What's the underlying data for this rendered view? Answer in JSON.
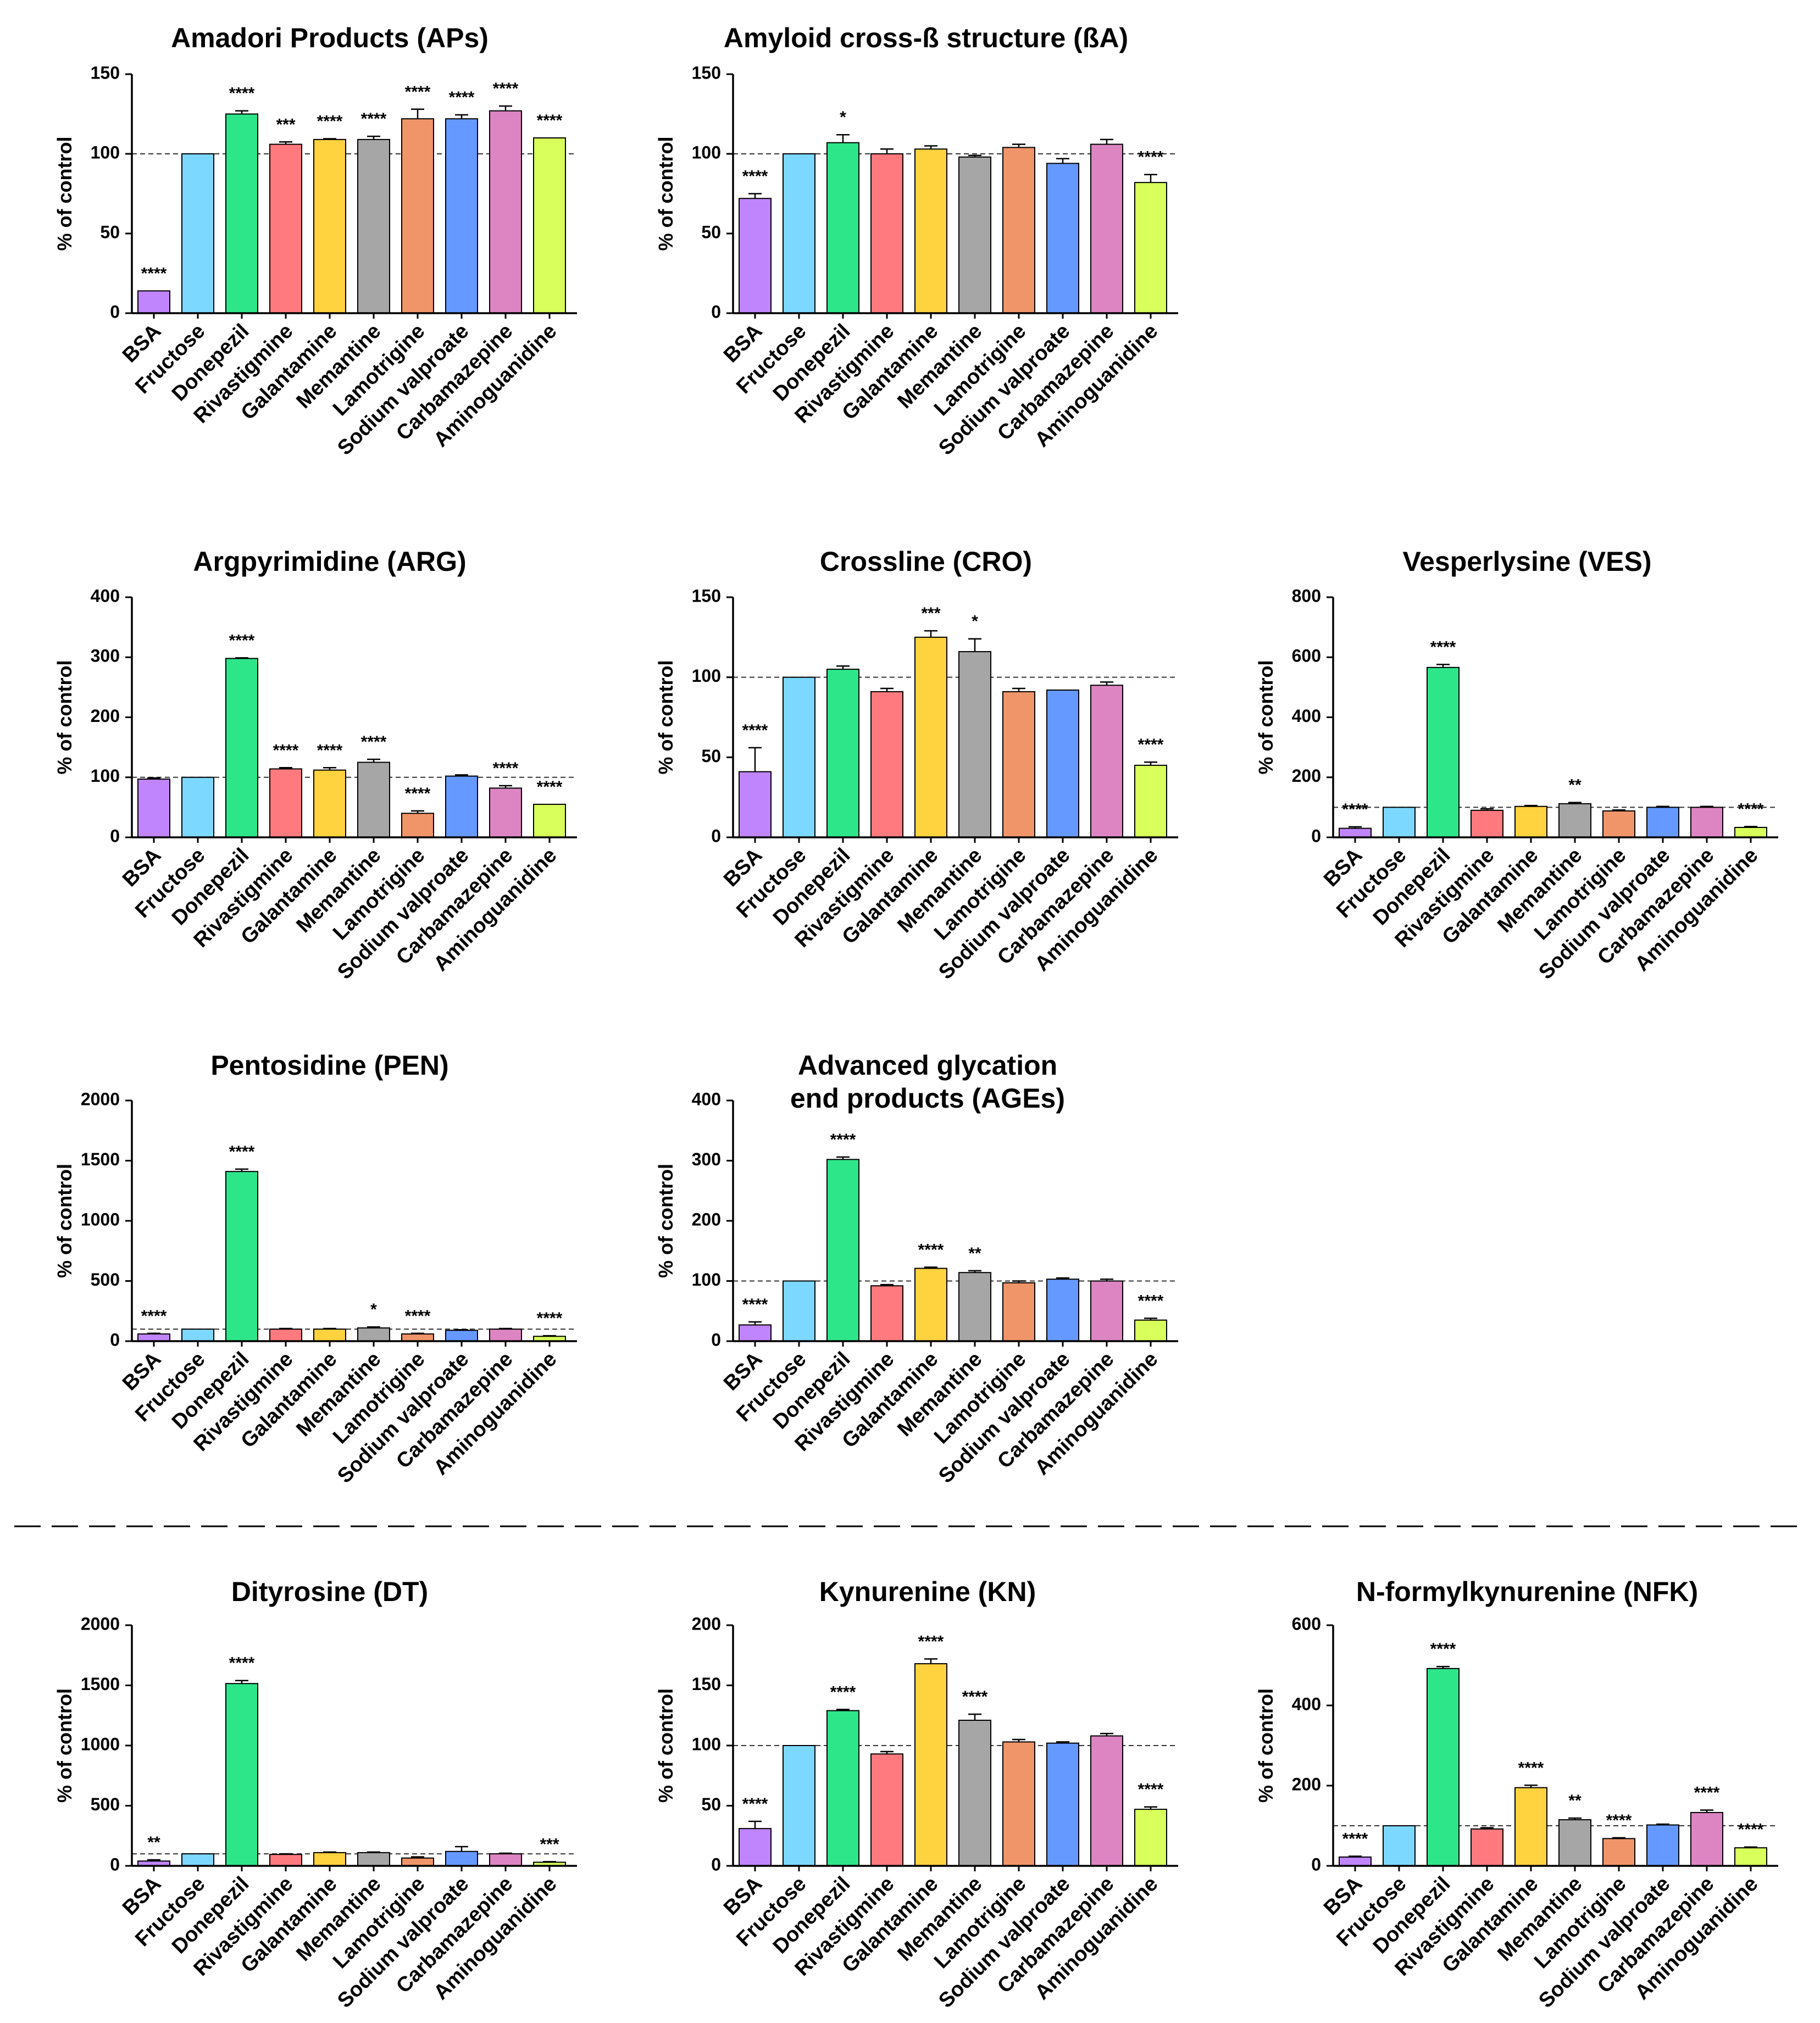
{
  "figure": {
    "categories": [
      "BSA",
      "Fructose",
      "Donepezil",
      "Rivastigmine",
      "Galantamine",
      "Memantine",
      "Lamotrigine",
      "Sodium valproate",
      "Carbamazepine",
      "Aminoguanidine"
    ],
    "colors": [
      "#c084fc",
      "#7dd8ff",
      "#2ee68a",
      "#ff7a7f",
      "#ffd23f",
      "#a6a6a6",
      "#f0956a",
      "#6699ff",
      "#dd85c3",
      "#d8ff5c"
    ],
    "reference_line": 100
  },
  "chart_data": [
    {
      "type": "bar",
      "title": [
        "Amadori Products (APs)"
      ],
      "ylabel": "% of control",
      "ylim": [
        0,
        150
      ],
      "yticks": [
        0,
        50,
        100,
        150
      ],
      "values": [
        14,
        100,
        125,
        106,
        109,
        109,
        122,
        122,
        127,
        110
      ],
      "errors": [
        0,
        0,
        2,
        1.5,
        0.5,
        2,
        6,
        2.5,
        3,
        0
      ],
      "significance": [
        "****",
        "",
        "****",
        "***",
        "****",
        "****",
        "****",
        "****",
        "****",
        "****"
      ]
    },
    {
      "type": "bar",
      "title": [
        "Amyloid cross-ß structure (ßA)"
      ],
      "ylabel": "% of control",
      "ylim": [
        0,
        150
      ],
      "yticks": [
        0,
        50,
        100,
        150
      ],
      "values": [
        72,
        100,
        107,
        100,
        103,
        98,
        104,
        94,
        106,
        82
      ],
      "errors": [
        3,
        0,
        5,
        3,
        2,
        1,
        2,
        3,
        3,
        5
      ],
      "significance": [
        "****",
        "",
        "*",
        "",
        "",
        "",
        "",
        "",
        "",
        "****"
      ]
    },
    {
      "type": "bar",
      "title": [
        "Argpyrimidine (ARG)"
      ],
      "ylabel": "% of control",
      "ylim": [
        0,
        400
      ],
      "yticks": [
        0,
        100,
        200,
        300,
        400
      ],
      "values": [
        97,
        100,
        298,
        114,
        112,
        125,
        40,
        102,
        82,
        55
      ],
      "errors": [
        2,
        0,
        1,
        2,
        4,
        5,
        4,
        2,
        4,
        0
      ],
      "significance": [
        "",
        "",
        "****",
        "****",
        "****",
        "****",
        "****",
        "",
        "****",
        "****"
      ]
    },
    {
      "type": "bar",
      "title": [
        "Crossline (CRO)"
      ],
      "ylabel": "% of control",
      "ylim": [
        0,
        150
      ],
      "yticks": [
        0,
        50,
        100,
        150
      ],
      "values": [
        41,
        100,
        105,
        91,
        125,
        116,
        91,
        92,
        95,
        45
      ],
      "errors": [
        15,
        0,
        2,
        2,
        4,
        8,
        2,
        0,
        2,
        2
      ],
      "significance": [
        "****",
        "",
        "",
        "",
        "***",
        "*",
        "",
        "",
        "",
        "****"
      ]
    },
    {
      "type": "bar",
      "title": [
        "Vesperlysine (VES)"
      ],
      "ylabel": "% of control",
      "ylim": [
        0,
        800
      ],
      "yticks": [
        0,
        200,
        400,
        600,
        800
      ],
      "values": [
        30,
        100,
        566,
        90,
        103,
        112,
        88,
        100,
        100,
        33
      ],
      "errors": [
        5,
        0,
        10,
        5,
        3,
        4,
        3,
        3,
        3,
        3
      ],
      "significance": [
        "****",
        "",
        "****",
        "",
        "",
        "**",
        "",
        "",
        "",
        "****"
      ]
    },
    {
      "type": "bar",
      "title": [
        "Pentosidine (PEN)"
      ],
      "ylabel": "% of control",
      "ylim": [
        0,
        2000
      ],
      "yticks": [
        0,
        500,
        1000,
        1500,
        2000
      ],
      "values": [
        60,
        100,
        1410,
        100,
        100,
        110,
        60,
        90,
        100,
        40
      ],
      "errors": [
        5,
        0,
        20,
        5,
        5,
        8,
        5,
        5,
        5,
        5
      ],
      "significance": [
        "****",
        "",
        "****",
        "",
        "",
        "*",
        "****",
        "",
        "",
        "****"
      ]
    },
    {
      "type": "bar",
      "title": [
        "Advanced glycation",
        "end products (AGEs)"
      ],
      "ylabel": "% of control",
      "ylim": [
        0,
        400
      ],
      "yticks": [
        0,
        100,
        200,
        300,
        400
      ],
      "values": [
        27,
        100,
        302,
        92,
        121,
        114,
        97,
        103,
        100,
        35
      ],
      "errors": [
        5,
        0,
        4,
        2,
        2,
        3,
        3,
        2,
        3,
        3
      ],
      "significance": [
        "****",
        "",
        "****",
        "",
        "****",
        "**",
        "",
        "",
        "",
        "****"
      ]
    },
    {
      "type": "bar",
      "title": [
        "Dityrosine (DT)"
      ],
      "ylabel": "% of control",
      "ylim": [
        0,
        2000
      ],
      "yticks": [
        0,
        500,
        1000,
        1500,
        2000
      ],
      "values": [
        40,
        100,
        1515,
        95,
        110,
        110,
        65,
        120,
        100,
        30
      ],
      "errors": [
        10,
        0,
        25,
        5,
        5,
        5,
        10,
        40,
        5,
        5
      ],
      "significance": [
        "**",
        "",
        "****",
        "",
        "",
        "",
        "",
        "",
        "",
        "***"
      ]
    },
    {
      "type": "bar",
      "title": [
        "Kynurenine (KN)"
      ],
      "ylabel": "% of control",
      "ylim": [
        0,
        200
      ],
      "yticks": [
        0,
        50,
        100,
        150,
        200
      ],
      "values": [
        31,
        100,
        129,
        93,
        168,
        121,
        103,
        102,
        108,
        47
      ],
      "errors": [
        6,
        0,
        1,
        2,
        4,
        5,
        2,
        1,
        2,
        2
      ],
      "significance": [
        "****",
        "",
        "****",
        "",
        "****",
        "****",
        "",
        "",
        "",
        "****"
      ]
    },
    {
      "type": "bar",
      "title": [
        "N-formylkynurenine (NFK)"
      ],
      "ylabel": "% of control",
      "ylim": [
        0,
        600
      ],
      "yticks": [
        0,
        200,
        400,
        600
      ],
      "values": [
        22,
        100,
        492,
        92,
        195,
        115,
        68,
        102,
        133,
        45
      ],
      "errors": [
        2,
        0,
        5,
        3,
        6,
        4,
        2,
        2,
        6,
        2
      ],
      "significance": [
        "****",
        "",
        "****",
        "",
        "****",
        "**",
        "****",
        "",
        "****",
        "****"
      ]
    }
  ]
}
